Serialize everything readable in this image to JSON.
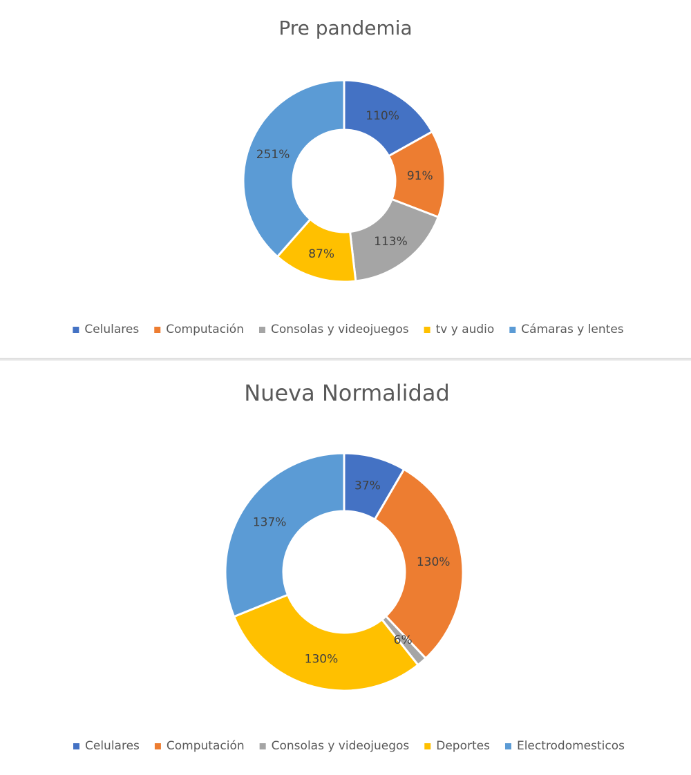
{
  "chart_data": [
    {
      "type": "donut",
      "title": "Pre pandemia",
      "legend_position": "bottom",
      "categories": [
        "Celulares",
        "Computación",
        "Consolas y videojuegos",
        "tv y audio",
        "Cámaras y lentes"
      ],
      "values": [
        110,
        91,
        113,
        87,
        251
      ],
      "labels": [
        "110%",
        "91%",
        "113%",
        "87%",
        "251%"
      ],
      "colors": [
        "#4472C4",
        "#ED7D31",
        "#A5A5A5",
        "#FFC000",
        "#5B9BD5"
      ]
    },
    {
      "type": "donut",
      "title": "Nueva Normalidad",
      "legend_position": "bottom",
      "categories": [
        "Celulares",
        "Computación",
        "Consolas y videojuegos",
        "Deportes",
        "Electrodomesticos"
      ],
      "values": [
        37,
        130,
        6,
        130,
        137
      ],
      "labels": [
        "37%",
        "130%",
        "6%",
        "130%",
        "137%"
      ],
      "colors": [
        "#4472C4",
        "#ED7D31",
        "#A5A5A5",
        "#FFC000",
        "#5B9BD5"
      ]
    }
  ]
}
